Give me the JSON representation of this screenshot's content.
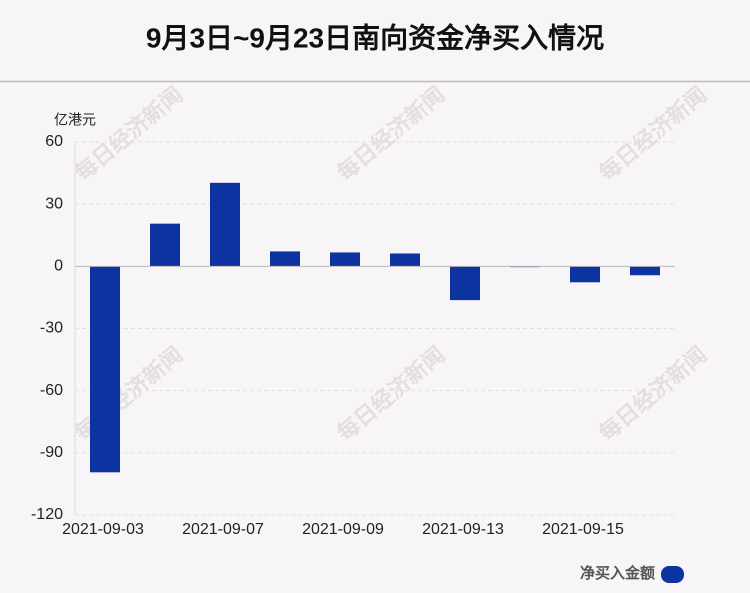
{
  "chart_data": {
    "type": "bar",
    "title": "9月3日~9月23日南向资金净买入情况",
    "y_label": "亿港元",
    "categories": [
      "2021-09-03",
      null,
      "2021-09-07",
      null,
      "2021-09-09",
      null,
      "2021-09-13",
      null,
      "2021-09-15",
      null
    ],
    "series": [
      {
        "name": "净买入金额",
        "color": "#0d33a0",
        "values": [
          -99.4,
          20.6,
          40.3,
          7.2,
          6.7,
          6.2,
          -16.3,
          -0.3,
          -7.7,
          -4.3
        ]
      }
    ],
    "ylim": [
      -120,
      60
    ],
    "yticks": [
      -120,
      -90,
      -60,
      -30,
      0,
      30,
      60
    ],
    "grid": true,
    "watermark": "每日经济新闻"
  }
}
